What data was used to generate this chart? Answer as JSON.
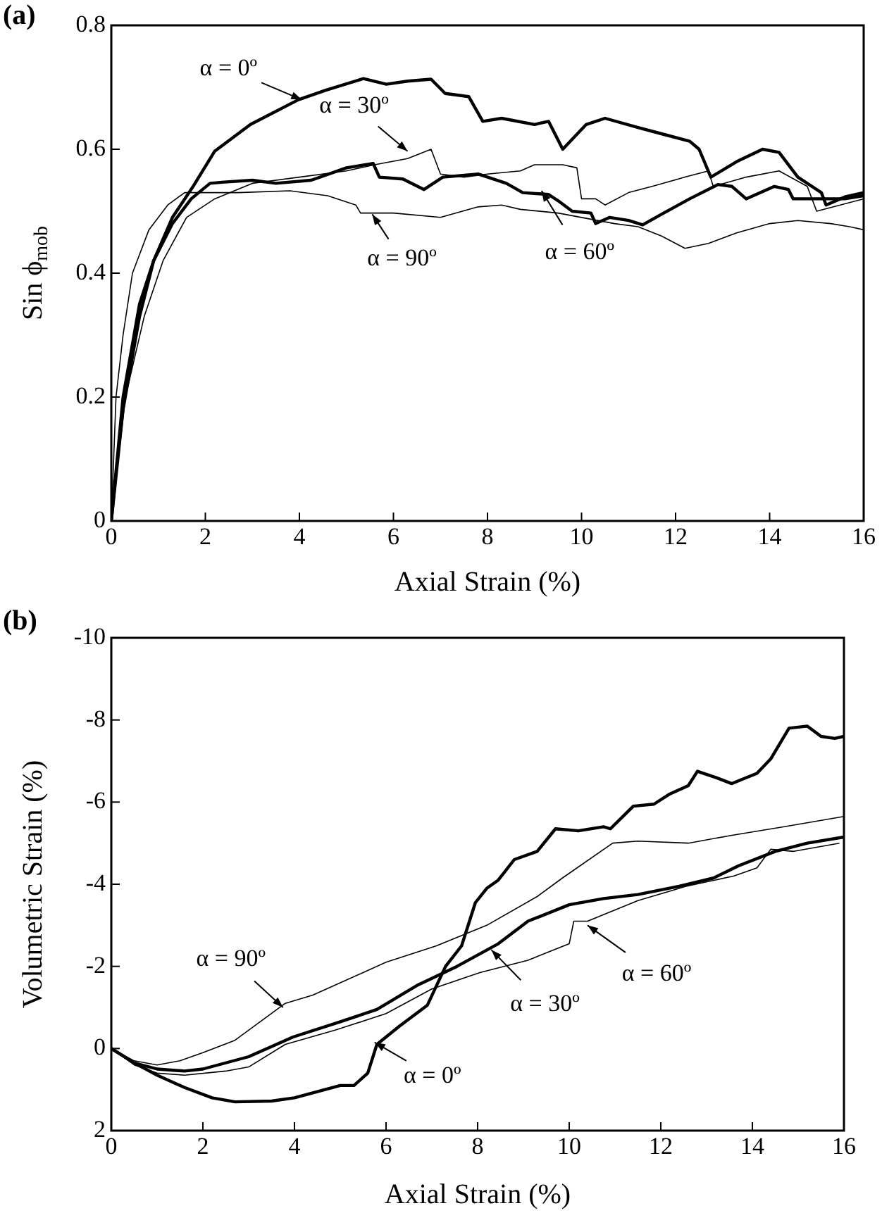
{
  "chart_data": [
    {
      "type": "line",
      "title": "(a)",
      "xlabel": "Axial Strain (%)",
      "ylabel": "Sin ϕ$_{mob}$",
      "xlim": [
        0,
        16
      ],
      "xticks": [
        0,
        2,
        4,
        6,
        8,
        10,
        12,
        14,
        16
      ],
      "ylim": [
        0,
        0.8
      ],
      "yticks": [
        0,
        0.2,
        0.4,
        0.6,
        0.8
      ],
      "grid": false,
      "legend": false,
      "series": [
        {
          "color": "#000000",
          "x": [
            0,
            0.25,
            0.6,
            0.9,
            1.3,
            1.74,
            2.2,
            2.96,
            3.98,
            4.55,
            5.36,
            5.85,
            6.3,
            6.8,
            7.1,
            7.6,
            7.9,
            8.3,
            9.0,
            9.3,
            9.6,
            10.1,
            10.5,
            11.2,
            11.7,
            12.3,
            12.5,
            12.75,
            13.3,
            13.85,
            14.2,
            14.6,
            15.1,
            15.2,
            15.6,
            16
          ],
          "values": [
            0,
            0.18,
            0.33,
            0.42,
            0.49,
            0.54,
            0.597,
            0.64,
            0.68,
            0.695,
            0.714,
            0.705,
            0.71,
            0.713,
            0.69,
            0.685,
            0.645,
            0.65,
            0.64,
            0.645,
            0.6,
            0.64,
            0.65,
            0.635,
            0.625,
            0.613,
            0.6,
            0.555,
            0.58,
            0.6,
            0.595,
            0.555,
            0.53,
            0.51,
            0.523,
            0.53
          ]
        },
        {
          "color": "#000000",
          "x": [
            0,
            0.3,
            0.7,
            1.1,
            1.6,
            2.2,
            3,
            4,
            5,
            5.6,
            6.3,
            6.8,
            7.0,
            7.5,
            8,
            8.7,
            9,
            9.6,
            9.9,
            10,
            10.3,
            10.5,
            11,
            11.5,
            12.2,
            12.7,
            12.8,
            13.5,
            14.2,
            14.8,
            15,
            15.5,
            16
          ],
          "values": [
            0,
            0.2,
            0.33,
            0.42,
            0.49,
            0.52,
            0.545,
            0.555,
            0.565,
            0.575,
            0.585,
            0.6,
            0.56,
            0.555,
            0.56,
            0.565,
            0.575,
            0.575,
            0.57,
            0.52,
            0.52,
            0.51,
            0.53,
            0.54,
            0.555,
            0.565,
            0.54,
            0.555,
            0.565,
            0.54,
            0.5,
            0.51,
            0.52
          ]
        },
        {
          "color": "#000000",
          "x": [
            0,
            0.25,
            0.6,
            0.9,
            1.3,
            1.7,
            2.1,
            2.4,
            3.0,
            3.5,
            4.25,
            5.0,
            5.57,
            5.7,
            6.2,
            6.65,
            7.05,
            7.8,
            8.4,
            8.75,
            9.3,
            9.5,
            9.8,
            10.2,
            10.3,
            10.6,
            11.0,
            11.3,
            11.7,
            12.3,
            12.9,
            13.2,
            13.5,
            14.1,
            14.4,
            14.5,
            15.1,
            15.6,
            16
          ],
          "values": [
            0,
            0.2,
            0.35,
            0.42,
            0.48,
            0.52,
            0.545,
            0.547,
            0.55,
            0.545,
            0.55,
            0.57,
            0.577,
            0.555,
            0.552,
            0.535,
            0.555,
            0.56,
            0.545,
            0.53,
            0.527,
            0.517,
            0.5,
            0.497,
            0.48,
            0.49,
            0.485,
            0.478,
            0.495,
            0.52,
            0.543,
            0.54,
            0.52,
            0.54,
            0.535,
            0.52,
            0.52,
            0.52,
            0.525
          ]
        },
        {
          "color": "#000000",
          "x": [
            0,
            0.1,
            0.25,
            0.45,
            0.8,
            1.2,
            1.56,
            2.7,
            3.8,
            4.6,
            5.2,
            5.3,
            6.0,
            7.0,
            7.8,
            8.3,
            8.7,
            9.5,
            10.7,
            11.2,
            11.7,
            12.2,
            12.7,
            13.3,
            14.0,
            14.6,
            15.3,
            15.7,
            16
          ],
          "values": [
            0,
            0.2,
            0.3,
            0.4,
            0.47,
            0.51,
            0.53,
            0.53,
            0.533,
            0.525,
            0.51,
            0.497,
            0.497,
            0.49,
            0.507,
            0.51,
            0.503,
            0.497,
            0.48,
            0.475,
            0.46,
            0.44,
            0.448,
            0.465,
            0.48,
            0.485,
            0.48,
            0.475,
            0.47
          ]
        }
      ],
      "annotations": [
        {
          "text": "α = 0º",
          "x": 4.05,
          "y": 0.68
        },
        {
          "text": "α = 30º",
          "x": 6.3,
          "y": 0.597
        },
        {
          "text": "α = 60º",
          "x": 9.15,
          "y": 0.533
        },
        {
          "text": "α = 90º",
          "x": 5.55,
          "y": 0.495
        }
      ]
    },
    {
      "type": "line",
      "title": "(b)",
      "xlabel": "Axial Strain (%)",
      "ylabel": "Volumetric Strain (%)",
      "xlim": [
        0,
        16
      ],
      "xticks": [
        0,
        2,
        4,
        6,
        8,
        10,
        12,
        14,
        16
      ],
      "ylim": [
        2,
        -10
      ],
      "yticks": [
        2,
        0,
        -2,
        -4,
        -6,
        -8,
        -10
      ],
      "grid": false,
      "legend": false,
      "series": [
        {
          "color": "#000000",
          "x": [
            0,
            0.5,
            1,
            1.6,
            2.2,
            2.7,
            3.5,
            4,
            4.5,
            5,
            5.3,
            5.6,
            5.8,
            6.3,
            6.9,
            7.3,
            7.65,
            7.95,
            8.2,
            8.45,
            8.8,
            9.3,
            9.7,
            10.2,
            10.75,
            10.9,
            11.4,
            11.85,
            12.2,
            12.6,
            12.8,
            13.2,
            13.55,
            14.1,
            14.4,
            14.8,
            15.2,
            15.5,
            15.8,
            16
          ],
          "values": [
            0,
            0.35,
            0.65,
            0.95,
            1.2,
            1.3,
            1.28,
            1.2,
            1.05,
            0.9,
            0.9,
            0.6,
            -0.1,
            -0.55,
            -1.05,
            -2.0,
            -2.5,
            -3.55,
            -3.9,
            -4.1,
            -4.6,
            -4.8,
            -5.35,
            -5.3,
            -5.4,
            -5.35,
            -5.9,
            -5.95,
            -6.2,
            -6.4,
            -6.75,
            -6.6,
            -6.45,
            -6.7,
            -7.05,
            -7.8,
            -7.85,
            -7.6,
            -7.55,
            -7.6
          ]
        },
        {
          "color": "#000000",
          "x": [
            0,
            0.5,
            1,
            1.6,
            2,
            3,
            3.97,
            5.0,
            5.8,
            6.7,
            7.55,
            8.45,
            9.1,
            10,
            10.75,
            11.5,
            12.4,
            13.15,
            13.7,
            14.5,
            15.2,
            16
          ],
          "values": [
            0,
            0.35,
            0.5,
            0.55,
            0.5,
            0.2,
            -0.28,
            -0.65,
            -0.95,
            -1.55,
            -2.0,
            -2.55,
            -3.1,
            -3.5,
            -3.65,
            -3.75,
            -3.95,
            -4.15,
            -4.45,
            -4.8,
            -5.0,
            -5.15
          ]
        },
        {
          "color": "#000000",
          "x": [
            0,
            0.5,
            1,
            1.6,
            2.5,
            3,
            3.8,
            4.9,
            6.0,
            7.0,
            8.05,
            9.1,
            10.0,
            10.1,
            10.4,
            11.5,
            12.55,
            13.6,
            14.1,
            14.4,
            14.9,
            15.9
          ],
          "values": [
            0,
            0.4,
            0.6,
            0.65,
            0.55,
            0.45,
            -0.1,
            -0.45,
            -0.85,
            -1.45,
            -1.85,
            -2.15,
            -2.55,
            -3.1,
            -3.1,
            -3.6,
            -3.95,
            -4.2,
            -4.4,
            -4.85,
            -4.8,
            -5.0
          ]
        },
        {
          "color": "#000000",
          "x": [
            0,
            0.5,
            1,
            1.5,
            2,
            2.7,
            3.8,
            4.4,
            6.0,
            7.1,
            8.2,
            9.3,
            9.85,
            10.95,
            11.5,
            12.6,
            13.6,
            14.7,
            16
          ],
          "values": [
            0,
            0.3,
            0.4,
            0.3,
            0.1,
            -0.2,
            -1.1,
            -1.3,
            -2.1,
            -2.5,
            -3.0,
            -3.7,
            -4.15,
            -5.0,
            -5.05,
            -5.0,
            -5.2,
            -5.4,
            -5.65
          ]
        }
      ],
      "annotations": [
        {
          "text": "α = 0º",
          "x": 5.75,
          "y": -0.15
        },
        {
          "text": "α = 30º",
          "x": 8.3,
          "y": -2.4
        },
        {
          "text": "α = 60º",
          "x": 10.4,
          "y": -3.0
        },
        {
          "text": "α = 90º",
          "x": 3.75,
          "y": -1.0
        }
      ]
    }
  ]
}
